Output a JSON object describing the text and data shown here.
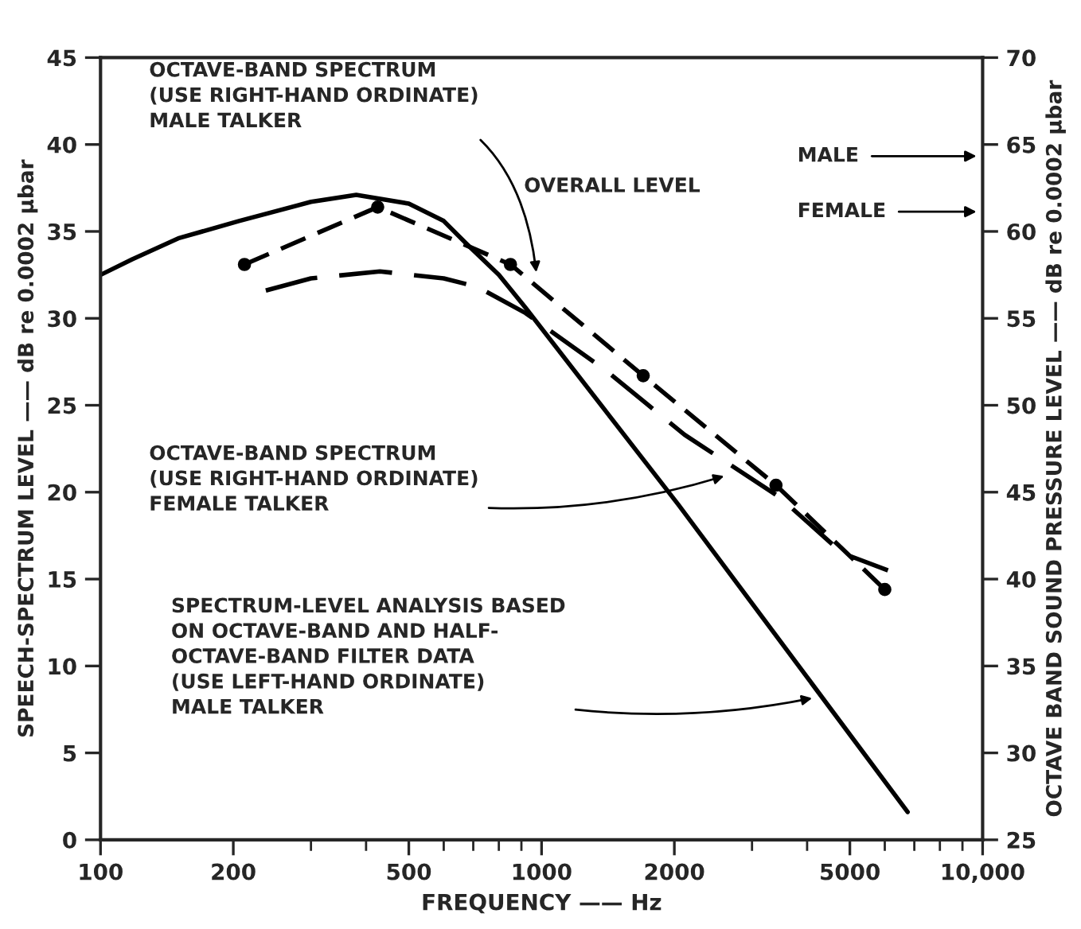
{
  "chart_data": {
    "type": "line",
    "xlabel": "FREQUENCY —— Hz",
    "ylabel": "SPEECH-SPECTRUM LEVEL —— dB re 0.0002 μbar",
    "y2label": "OCTAVE BAND SOUND PRESSURE LEVEL —— dB re 0.0002 μbar",
    "log": "x",
    "grid": false,
    "legend": false,
    "xlim": [
      100,
      10000
    ],
    "xticks": [
      100,
      200,
      500,
      1000,
      2000,
      5000,
      {
        "value": 10000,
        "label": "10,000"
      }
    ],
    "ylim": [
      0,
      45
    ],
    "yticks": [
      0,
      5,
      10,
      15,
      20,
      25,
      30,
      35,
      40,
      45
    ],
    "y2lim": [
      25,
      70
    ],
    "y2ticks": [
      25,
      30,
      35,
      40,
      45,
      50,
      55,
      60,
      65,
      70
    ],
    "series": [
      {
        "color": "#000000",
        "line_style": "solid",
        "marker": "none",
        "x": [
          100,
          118,
          150,
          206,
          300,
          380,
          500,
          600,
          675,
          800,
          920,
          2040,
          6760
        ],
        "values": [
          32.5,
          33.4,
          34.6,
          35.6,
          36.7,
          37.1,
          36.6,
          35.6,
          34.3,
          32.5,
          30.6,
          19.3,
          1.6
        ]
      },
      {
        "color": "#000000",
        "line_style": "dashed",
        "marker": "circle",
        "axis": "y2",
        "x": [
          212,
          425,
          850,
          1700,
          3400,
          6000
        ],
        "values": [
          58.1,
          61.4,
          58.1,
          51.7,
          45.4,
          39.4
        ]
      },
      {
        "color": "#000000",
        "line_style": "dashed",
        "marker": "none",
        "axis": "y2",
        "x": [
          237,
          300,
          430,
          600,
          717,
          920,
          1400,
          2110,
          3470,
          4800,
          6100
        ],
        "values": [
          56.6,
          57.3,
          57.7,
          57.3,
          56.8,
          55.3,
          52.0,
          48.3,
          44.7,
          41.5,
          40.5
        ]
      }
    ],
    "annotations": [
      {
        "text": "OCTAVE-BAND SPECTRUM\n(USE RIGHT-HAND ORDINATE)\nMALE TALKER",
        "x": 975,
        "y": 32.4
      },
      {
        "text": "OCTAVE-BAND SPECTRUM\n(USE RIGHT-HAND ORDINATE)\nFEMALE TALKER",
        "x": 2650,
        "y": 21.0
      },
      {
        "text": "SPECTRUM-LEVEL ANALYSIS BASED\nON OCTAVE-BAND AND HALF-\nOCTAVE-BAND FILTER DATA\n(USE LEFT-HAND ORDINATE)\nMALE TALKER",
        "x": 4200,
        "y": 8.2
      },
      "OVERALL LEVEL",
      "MALE",
      "FEMALE"
    ]
  }
}
